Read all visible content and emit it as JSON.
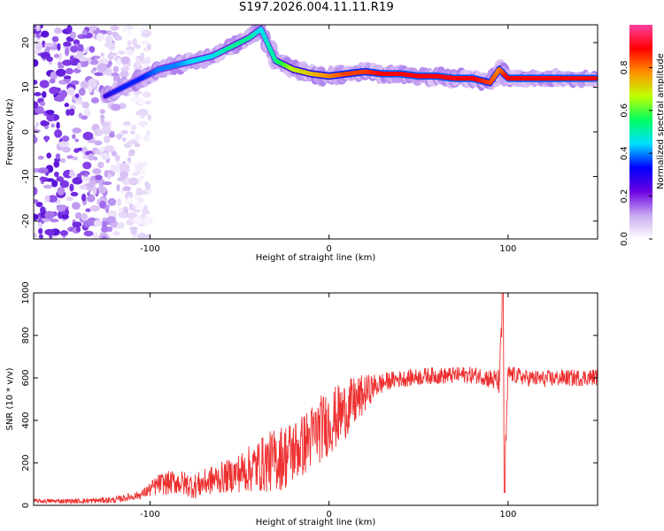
{
  "title": "S197.2026.004.11.11.R19",
  "chart_data": [
    {
      "type": "heatmap",
      "xlabel": "Height of straight line (km)",
      "ylabel": "Frequency (Hz)",
      "xlim": [
        -165,
        150
      ],
      "ylim": [
        -24,
        24
      ],
      "x_ticks": [
        -100,
        0,
        100
      ],
      "y_ticks": [
        20,
        10,
        0,
        -10,
        -20
      ],
      "colorbar": {
        "label": "Normalized spectral amplitude",
        "range": [
          0,
          1
        ],
        "ticks": [
          0.0,
          0.2,
          0.4,
          0.6,
          0.8
        ],
        "colors": [
          "#ffffff",
          "#c8a8f0",
          "#6a00e0",
          "#0000ff",
          "#00e0ff",
          "#00ff60",
          "#c0ff00",
          "#ff9000",
          "#ff0000",
          "#ff40a0"
        ]
      },
      "ridge": {
        "x": [
          -125,
          -115,
          -105,
          -95,
          -85,
          -75,
          -65,
          -55,
          -45,
          -38,
          -30,
          -20,
          -10,
          0,
          10,
          20,
          30,
          40,
          50,
          60,
          70,
          80,
          90,
          95,
          100,
          110,
          120,
          130,
          150
        ],
        "y": [
          8,
          10,
          12,
          14,
          15,
          16,
          17,
          19,
          21,
          23,
          16,
          14,
          13,
          12.5,
          13,
          13.5,
          13,
          13,
          12.5,
          12.5,
          12,
          12,
          11,
          14,
          12,
          12,
          12,
          12,
          12
        ],
        "amplitude": [
          0.3,
          0.35,
          0.35,
          0.4,
          0.4,
          0.45,
          0.45,
          0.5,
          0.5,
          0.45,
          0.5,
          0.65,
          0.7,
          0.75,
          0.8,
          0.8,
          0.85,
          0.85,
          0.85,
          0.85,
          0.85,
          0.85,
          0.8,
          0.75,
          0.85,
          0.85,
          0.85,
          0.85,
          0.85
        ]
      },
      "noise_region_x": [
        -165,
        -110
      ]
    },
    {
      "type": "line",
      "xlabel": "Height of straight line (km)",
      "ylabel": "SNR (10 * v/v)",
      "xlim": [
        -165,
        150
      ],
      "ylim": [
        0,
        1000
      ],
      "x_ticks": [
        -100,
        0,
        100
      ],
      "y_ticks": [
        0,
        200,
        400,
        600,
        800,
        1000
      ],
      "series": [
        {
          "name": "SNR",
          "color": "#ee3030",
          "x": [
            -165,
            -140,
            -120,
            -105,
            -95,
            -85,
            -75,
            -65,
            -55,
            -45,
            -35,
            -25,
            -15,
            -5,
            5,
            15,
            25,
            35,
            45,
            55,
            65,
            75,
            85,
            95,
            97,
            98,
            100,
            110,
            120,
            130,
            140,
            150
          ],
          "y": [
            20,
            20,
            25,
            50,
            100,
            110,
            90,
            120,
            140,
            170,
            200,
            230,
            280,
            360,
            420,
            490,
            560,
            590,
            600,
            610,
            610,
            615,
            610,
            580,
            900,
            80,
            620,
            600,
            595,
            600,
            600,
            605
          ],
          "noise": [
            10,
            12,
            15,
            20,
            50,
            60,
            60,
            70,
            80,
            110,
            140,
            160,
            150,
            160,
            150,
            120,
            60,
            40,
            40,
            40,
            40,
            40,
            40,
            60,
            100,
            100,
            40,
            40,
            40,
            40,
            40,
            40
          ]
        }
      ]
    }
  ]
}
